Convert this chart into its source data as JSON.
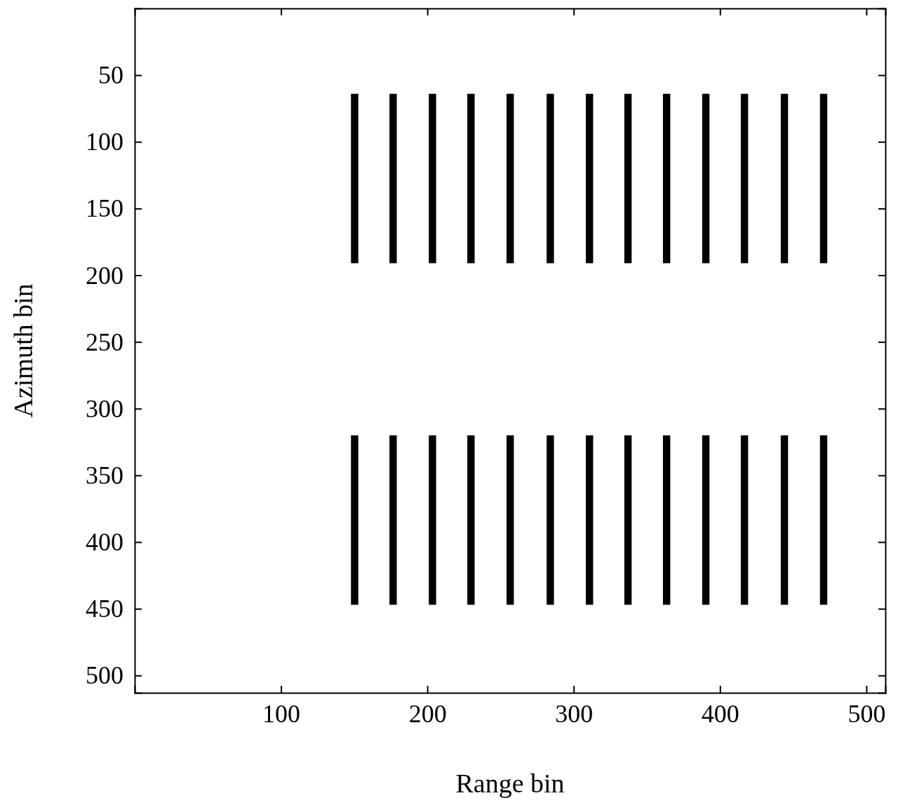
{
  "chart_data": {
    "type": "bar",
    "xlabel": "Range bin",
    "ylabel": "Azimuth bin",
    "xlim": [
      0,
      513
    ],
    "ylim": [
      513,
      0
    ],
    "xticks": [
      100,
      200,
      300,
      400,
      500
    ],
    "yticks": [
      50,
      100,
      150,
      200,
      250,
      300,
      350,
      400,
      450,
      500
    ],
    "grid": false,
    "series": [
      {
        "color": "#000000",
        "x": [
          150.3,
          176.6,
          203.5,
          229.8,
          256.6,
          284,
          310.8,
          337.1,
          363.5,
          390.3,
          416.7,
          444,
          470.8
        ],
        "base": [
          64,
          64,
          64,
          64,
          64,
          64,
          64,
          64,
          64,
          64,
          64,
          64,
          64
        ],
        "values": [
          127,
          127,
          127,
          127,
          127,
          127,
          127,
          127,
          127,
          127,
          127,
          127,
          127
        ]
      },
      {
        "color": "#000000",
        "x": [
          150.3,
          176.6,
          203.5,
          229.8,
          256.6,
          284,
          310.8,
          337.1,
          363.5,
          390.3,
          416.7,
          444,
          470.8
        ],
        "base": [
          320,
          320,
          320,
          320,
          320,
          320,
          320,
          320,
          320,
          320,
          320,
          320,
          320
        ],
        "values": [
          127,
          127,
          127,
          127,
          127,
          127,
          127,
          127,
          127,
          127,
          127,
          127,
          127
        ]
      }
    ]
  }
}
